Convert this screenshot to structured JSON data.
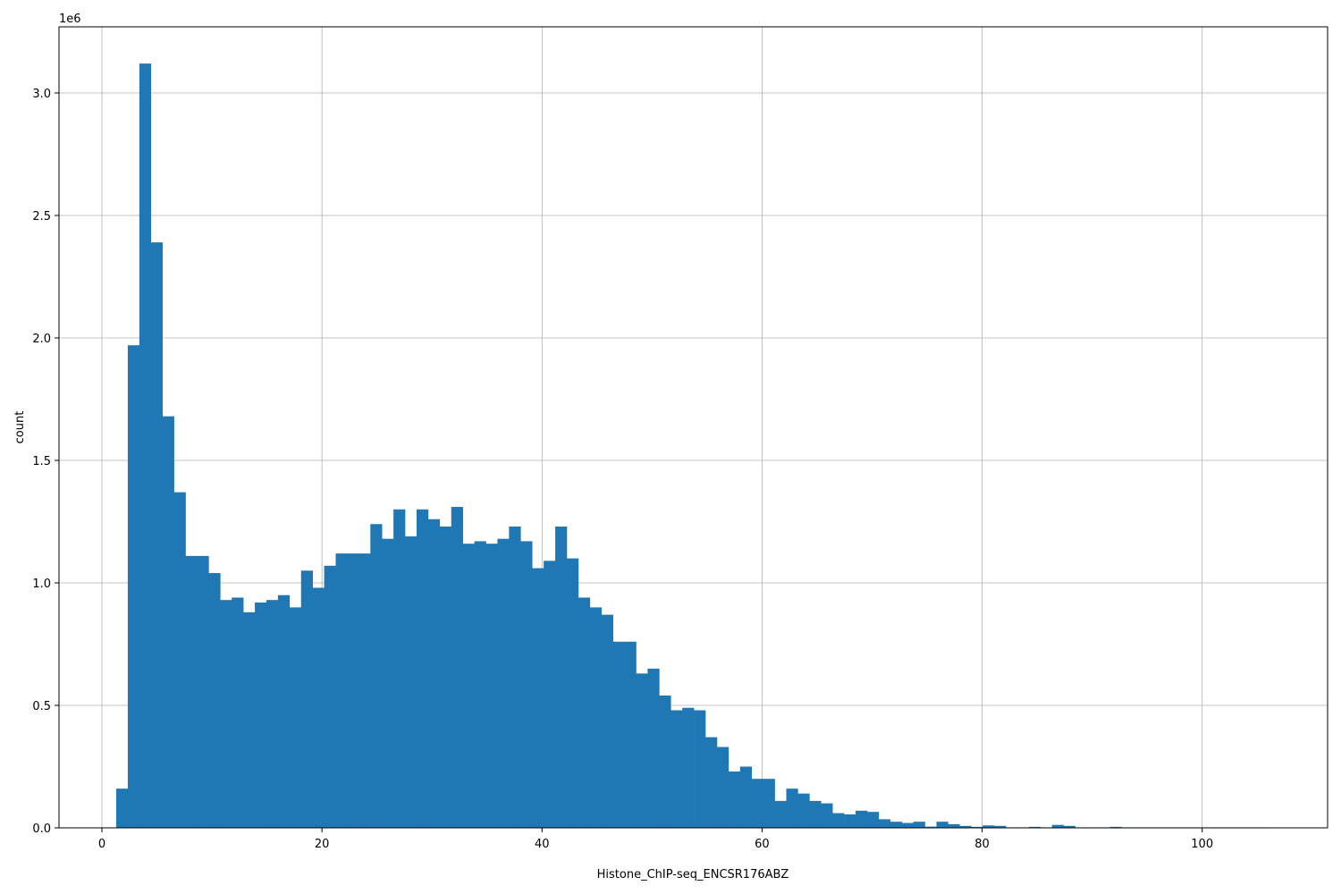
{
  "chart_data": {
    "type": "bar",
    "subtype": "histogram",
    "xlabel": "Histone_ChIP-seq_ENCSR176ABZ",
    "ylabel": "count",
    "y_offset_label": "1e6",
    "xlim": [
      -3.9,
      111.4
    ],
    "ylim": [
      0,
      3.27
    ],
    "xticks": [
      0,
      20,
      40,
      60,
      80,
      100
    ],
    "xtick_labels": [
      "0",
      "20",
      "40",
      "60",
      "80",
      "100"
    ],
    "yticks": [
      0,
      0.5,
      1.0,
      1.5,
      2.0,
      2.5,
      3.0
    ],
    "ytick_labels": [
      "0.0",
      "0.5",
      "1.0",
      "1.5",
      "2.0",
      "2.5",
      "3.0"
    ],
    "grid": true,
    "bar_color": "#1f77b4",
    "bin_start": 1.3,
    "bin_width": 1.05,
    "values": [
      0.16,
      1.97,
      3.12,
      2.39,
      1.68,
      1.37,
      1.11,
      1.11,
      1.04,
      0.93,
      0.94,
      0.88,
      0.92,
      0.93,
      0.95,
      0.9,
      1.05,
      0.98,
      1.07,
      1.12,
      1.12,
      1.12,
      1.24,
      1.18,
      1.3,
      1.19,
      1.3,
      1.26,
      1.23,
      1.31,
      1.16,
      1.17,
      1.16,
      1.18,
      1.23,
      1.17,
      1.06,
      1.09,
      1.23,
      1.1,
      0.94,
      0.9,
      0.87,
      0.76,
      0.76,
      0.63,
      0.65,
      0.54,
      0.48,
      0.49,
      0.48,
      0.37,
      0.33,
      0.23,
      0.25,
      0.2,
      0.2,
      0.11,
      0.16,
      0.14,
      0.11,
      0.1,
      0.06,
      0.055,
      0.07,
      0.065,
      0.035,
      0.025,
      0.02,
      0.025,
      0.005,
      0.025,
      0.015,
      0.008,
      0.004,
      0.01,
      0.008,
      0.002,
      0.002,
      0.004,
      0.002,
      0.012,
      0.008,
      0.002,
      0.002,
      0.002,
      0.004,
      0.002,
      0.002,
      0.002,
      0.002,
      0.002,
      0.002,
      0.002,
      0.002,
      0.002,
      0.002,
      0.002,
      0.002,
      0.002
    ]
  }
}
